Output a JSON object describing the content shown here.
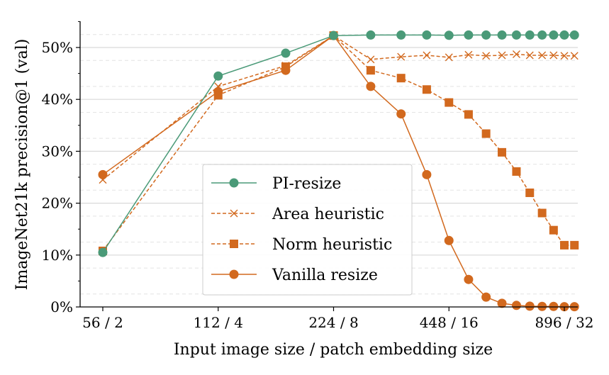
{
  "chart_data": {
    "type": "line",
    "title": "",
    "xlabel": "Input image size / patch embedding size",
    "ylabel": "ImageNet21k precision@1 (val)",
    "xscale": "log2",
    "xlim": [
      48,
      1000
    ],
    "ylim": [
      0,
      55
    ],
    "x_ticks": [
      {
        "value": 56,
        "label": "56 / 2"
      },
      {
        "value": 112,
        "label": "112 / 4"
      },
      {
        "value": 224,
        "label": "224 / 8"
      },
      {
        "value": 448,
        "label": "448 / 16"
      },
      {
        "value": 896,
        "label": "896 / 32"
      }
    ],
    "y_ticks": [
      {
        "value": 0,
        "label": "0%"
      },
      {
        "value": 10,
        "label": "10%"
      },
      {
        "value": 20,
        "label": "20%"
      },
      {
        "value": 30,
        "label": "30%"
      },
      {
        "value": 40,
        "label": "40%"
      },
      {
        "value": 50,
        "label": "50%"
      }
    ],
    "grid": true,
    "legend_position": "lower-center",
    "x": [
      56,
      112,
      168,
      224,
      280,
      336,
      392,
      448,
      504,
      560,
      616,
      672,
      728,
      784,
      840,
      896,
      952
    ],
    "series": [
      {
        "name": "PI-resize",
        "color": "#4a9a78",
        "marker": "circle",
        "dash": "solid",
        "values": [
          10.5,
          44.5,
          48.9,
          52.3,
          52.4,
          52.4,
          52.4,
          52.35,
          52.4,
          52.4,
          52.4,
          52.4,
          52.4,
          52.4,
          52.4,
          52.4,
          52.4
        ]
      },
      {
        "name": "Area heuristic",
        "color": "#d2691e",
        "marker": "x",
        "dash": "dashed",
        "values": [
          24.5,
          42.5,
          46.5,
          52.3,
          47.7,
          48.2,
          48.5,
          48.1,
          48.6,
          48.4,
          48.5,
          48.7,
          48.5,
          48.5,
          48.5,
          48.4,
          48.4
        ]
      },
      {
        "name": "Norm heuristic",
        "color": "#d2691e",
        "marker": "square",
        "dash": "dashed",
        "values": [
          10.8,
          40.8,
          46.3,
          52.3,
          45.6,
          44.1,
          41.9,
          39.4,
          37.1,
          33.4,
          29.8,
          26.1,
          22.0,
          18.1,
          14.8,
          11.9,
          11.9
        ]
      },
      {
        "name": "Vanilla resize",
        "color": "#d2691e",
        "marker": "circle",
        "dash": "solid",
        "values": [
          25.5,
          41.5,
          45.6,
          52.3,
          42.5,
          37.2,
          25.5,
          12.8,
          5.3,
          1.9,
          0.7,
          0.3,
          0.15,
          0.1,
          0.1,
          0.05,
          0.05
        ]
      }
    ]
  }
}
